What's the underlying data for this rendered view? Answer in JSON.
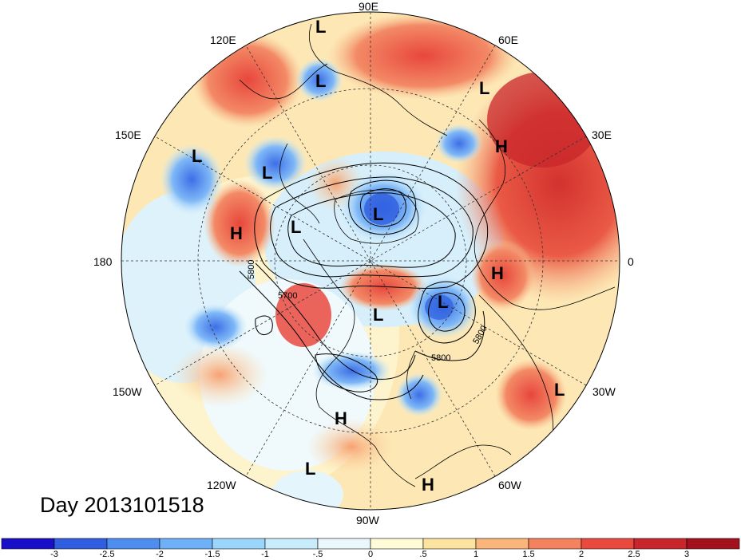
{
  "map": {
    "projection": "north-polar-stereographic",
    "date_label": "Day 2013101518",
    "longitude_labels": [
      "90E",
      "60E",
      "30E",
      "0",
      "30W",
      "60W",
      "90W",
      "120W",
      "150W",
      "180",
      "150E",
      "120E"
    ],
    "contour_labels": [
      "5800",
      "5700",
      "5800",
      "5800"
    ],
    "pressure_systems": [
      {
        "type": "L",
        "label": "L"
      },
      {
        "type": "L",
        "label": "L"
      },
      {
        "type": "L",
        "label": "L"
      },
      {
        "type": "H",
        "label": "H"
      },
      {
        "type": "L",
        "label": "L"
      },
      {
        "type": "L",
        "label": "L"
      },
      {
        "type": "L",
        "label": "L"
      },
      {
        "type": "H",
        "label": "H"
      },
      {
        "type": "L",
        "label": "L"
      },
      {
        "type": "H",
        "label": "H"
      },
      {
        "type": "L",
        "label": "L"
      },
      {
        "type": "L",
        "label": "L"
      },
      {
        "type": "L",
        "label": "L"
      },
      {
        "type": "H",
        "label": "H"
      },
      {
        "type": "L",
        "label": "L"
      },
      {
        "type": "H",
        "label": "H"
      }
    ]
  },
  "colorbar": {
    "tick_labels": [
      "-3",
      "-2.5",
      "-2",
      "-1.5",
      "-1",
      "-.5",
      "0",
      ".5",
      "1",
      "1.5",
      "2",
      "2.5",
      "3"
    ],
    "colors": [
      "#1a0fc8",
      "#2f5fe0",
      "#4d8ef0",
      "#6fb1f7",
      "#9ad5fb",
      "#c9ecfc",
      "#eaf8fd",
      "#fffbd6",
      "#fde3a0",
      "#fbb57a",
      "#f4825f",
      "#ea4a3e",
      "#c8262b",
      "#a3111c"
    ]
  }
}
